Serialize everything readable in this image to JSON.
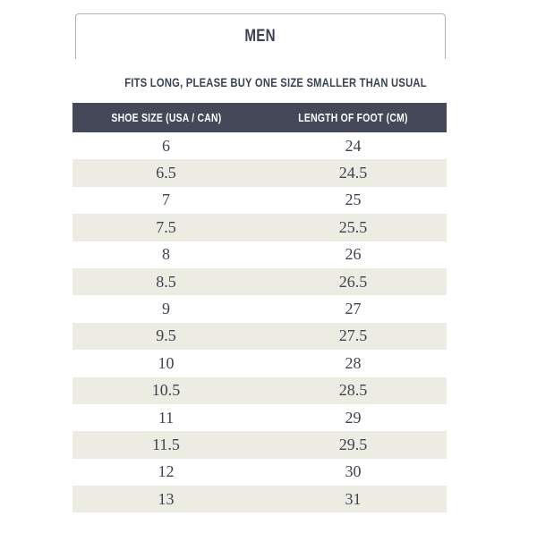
{
  "tab": {
    "label": "MEN"
  },
  "note": "FITS LONG, PLEASE BUY ONE SIZE SMALLER THAN USUAL",
  "table": {
    "columns": [
      "SHOE SIZE (USA / CAN)",
      "LENGTH OF FOOT (CM)"
    ],
    "rows": [
      [
        "6",
        "24"
      ],
      [
        "6.5",
        "24.5"
      ],
      [
        "7",
        "25"
      ],
      [
        "7.5",
        "25.5"
      ],
      [
        "8",
        "26"
      ],
      [
        "8.5",
        "26.5"
      ],
      [
        "9",
        "27"
      ],
      [
        "9.5",
        "27.5"
      ],
      [
        "10",
        "28"
      ],
      [
        "10.5",
        "28.5"
      ],
      [
        "11",
        "29"
      ],
      [
        "11.5",
        "29.5"
      ],
      [
        "12",
        "30"
      ],
      [
        "13",
        "31"
      ]
    ]
  },
  "colors": {
    "header_bg": "#444859",
    "row_stripe": "#ecece3",
    "heading_text": "#3c4156",
    "data_text": "#3e4350",
    "border": "#b1b1b1"
  }
}
